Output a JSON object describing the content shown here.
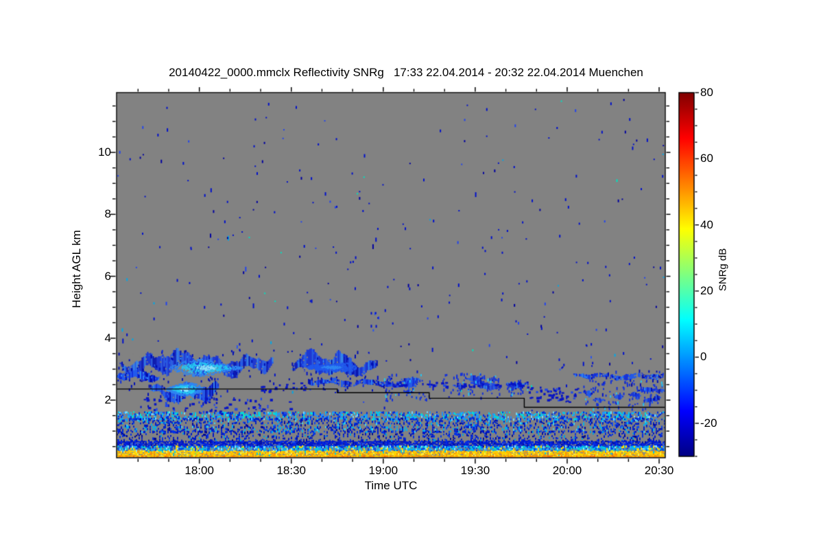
{
  "chart_data": {
    "type": "heatmap",
    "title": "20140422_0000.mmclx Reflectivity SNRg   17:33 22.04.2014 - 20:32 22.04.2014 Muenchen",
    "xlabel": "Time UTC",
    "ylabel": "Height AGL km",
    "x_axis": {
      "start": "17:33",
      "end": "20:32",
      "ticks": [
        "18:00",
        "18:30",
        "19:00",
        "19:30",
        "20:00",
        "20:30"
      ],
      "minor_step_minutes": 10
    },
    "y_axis": {
      "min_km": 0.14,
      "max_km": 11.93,
      "ticks": [
        2,
        4,
        6,
        8,
        10
      ],
      "minor_step_km": 0.5
    },
    "colorbar": {
      "label": "SNRg dB",
      "ticks": [
        80,
        60,
        40,
        20,
        0,
        -20
      ],
      "minor_step": 5,
      "range": [
        -30,
        80
      ],
      "colormap": "jet",
      "jet_stops": [
        [
          "#000083",
          0
        ],
        [
          "#0000ff",
          0.125
        ],
        [
          "#00ffff",
          0.375
        ],
        [
          "#ffff00",
          0.625
        ],
        [
          "#ff0000",
          0.875
        ],
        [
          "#800000",
          1
        ]
      ]
    },
    "no_echo_color": "#828282",
    "palette": {
      "cloud_dark": "#000fb4",
      "cloud_base": "#1330dc",
      "cloud_mid": "#2159ec",
      "cloud_light": "#2e86f2",
      "cloud_cyan": "#27c6f2",
      "cloud_pale": "#8ce4fa",
      "hole": "#828282"
    },
    "boundary_line": {
      "color": "#000000",
      "points": [
        [
          "17:33",
          2.36
        ],
        [
          "18:45",
          2.36
        ],
        [
          "18:45",
          2.24
        ],
        [
          "19:15",
          2.24
        ],
        [
          "19:15",
          2.06
        ],
        [
          "19:46",
          2.06
        ],
        [
          "19:46",
          1.77
        ],
        [
          "20:32",
          1.77
        ]
      ]
    },
    "clouds": [
      {
        "name": "main-cloud-layer",
        "t0": "17:34",
        "t1": "18:24",
        "h0": 2.78,
        "h1": 3.55,
        "style": "solid",
        "core": {
          "t0": "17:50",
          "t1": "18:14",
          "h0": 2.82,
          "h1": 3.3,
          "bright": true
        }
      },
      {
        "name": "left-lower-lobe",
        "t0": "17:33",
        "t1": "17:47",
        "h0": 2.6,
        "h1": 3.0,
        "style": "solid"
      },
      {
        "name": "lower-cloud-blob",
        "t0": "17:44",
        "t1": "18:06",
        "h0": 1.95,
        "h1": 2.65,
        "style": "solid",
        "core": {
          "t0": "17:49",
          "t1": "18:01",
          "h0": 2.18,
          "h1": 2.55,
          "bright": true
        }
      },
      {
        "name": "cloud-b",
        "t0": "18:30",
        "t1": "18:58",
        "h0": 2.75,
        "h1": 3.52,
        "style": "solid",
        "core": {
          "t0": "18:35",
          "t1": "18:51",
          "h0": 2.85,
          "h1": 3.3,
          "bright": false
        }
      },
      {
        "name": "thin-layer-a",
        "t0": "18:35",
        "t1": "19:02",
        "h0": 2.45,
        "h1": 2.72,
        "style": "thin"
      },
      {
        "name": "patch-a",
        "t0": "19:00",
        "t1": "19:15",
        "h0": 2.15,
        "h1": 2.8,
        "style": "patchy"
      },
      {
        "name": "patch-b",
        "t0": "19:19",
        "t1": "19:38",
        "h0": 2.3,
        "h1": 2.82,
        "style": "patchy"
      },
      {
        "name": "patch-c",
        "t0": "19:40",
        "t1": "19:47",
        "h0": 2.3,
        "h1": 2.6,
        "style": "patchy"
      },
      {
        "name": "thin-layer-b",
        "t0": "20:02",
        "t1": "20:32",
        "h0": 2.66,
        "h1": 2.9,
        "style": "thin"
      },
      {
        "name": "wavy-layer",
        "t0": "20:05",
        "t1": "20:32",
        "h0": 1.88,
        "h1": 2.6,
        "style": "patchy"
      }
    ],
    "scatters": [
      {
        "t0": "17:40",
        "t1": "18:30",
        "h0": 1.55,
        "h1": 2.1,
        "n": 70
      },
      {
        "t0": "18:57",
        "t1": "19:47",
        "h0": 2.45,
        "h1": 2.62,
        "n": 60
      },
      {
        "t0": "19:46",
        "t1": "20:06",
        "h0": 1.95,
        "h1": 2.45,
        "n": 55
      },
      {
        "t0": "18:20",
        "t1": "18:35",
        "h0": 2.3,
        "h1": 2.6,
        "n": 25
      }
    ],
    "streaks": [
      {
        "t": "18:12",
        "h0": 3.55,
        "h1": 4.05,
        "n": 5
      },
      {
        "t": "18:57",
        "h0": 4.25,
        "h1": 5.05,
        "n": 7
      },
      {
        "t": "19:58",
        "h0": 2.95,
        "h1": 3.45,
        "n": 5
      },
      {
        "t": "20:07",
        "h0": 3.1,
        "h1": 3.95,
        "n": 6
      }
    ],
    "noise_speckles": {
      "h0": 1.68,
      "h1": 11.9,
      "count": 300,
      "colors": [
        [
          "#0010cc",
          0.6
        ],
        [
          "#0000a0",
          0.2
        ],
        [
          "#2244ee",
          0.12
        ],
        [
          "#00a8e8",
          0.05
        ],
        [
          "#00e0c0",
          0.03
        ]
      ]
    },
    "pbl_bands": [
      {
        "h0": 1.42,
        "h1": 1.62,
        "density": 0.55,
        "colors": [
          [
            "#00c8f0",
            0.3
          ],
          [
            "#2090ff",
            0.25
          ],
          [
            "#0030dd",
            0.3
          ],
          [
            "#00e8d0",
            0.07
          ],
          [
            "#70d8ff",
            0.08
          ]
        ]
      },
      {
        "h0": 1.0,
        "h1": 1.42,
        "density": 0.42,
        "colors": [
          [
            "#0020cc",
            0.45
          ],
          [
            "#1048e8",
            0.2
          ],
          [
            "#00b0f0",
            0.18
          ],
          [
            "#0008a0",
            0.12
          ],
          [
            "#40d0f0",
            0.05
          ]
        ]
      },
      {
        "h0": 0.68,
        "h1": 1.0,
        "density": 0.3,
        "colors": [
          [
            "#0018c8",
            0.5
          ],
          [
            "#0030e8",
            0.25
          ],
          [
            "#00a0e0",
            0.1
          ],
          [
            "#000890",
            0.15
          ]
        ]
      },
      {
        "h0": 0.52,
        "h1": 0.68,
        "density": 0.94,
        "colors": [
          [
            "#0018d0",
            0.55
          ],
          [
            "#0028e8",
            0.25
          ],
          [
            "#0010a8",
            0.15
          ],
          [
            "#2050f0",
            0.05
          ]
        ]
      },
      {
        "h0": 0.36,
        "h1": 0.52,
        "density": 0.85,
        "colors": [
          [
            "#00b4f4",
            0.3
          ],
          [
            "#2fa0ff",
            0.15
          ],
          [
            "#0048e8",
            0.25
          ],
          [
            "#00e0d0",
            0.1
          ],
          [
            "#ffe000",
            0.1
          ],
          [
            "#80e8ff",
            0.1
          ]
        ]
      },
      {
        "h0": 0.2,
        "h1": 0.36,
        "density": 0.97,
        "colors": [
          [
            "#ffd400",
            0.38
          ],
          [
            "#ffb300",
            0.22
          ],
          [
            "#ffef40",
            0.15
          ],
          [
            "#ff9400",
            0.12
          ],
          [
            "#ffc800",
            0.08
          ],
          [
            "#00d0e0",
            0.03
          ],
          [
            "#a0e830",
            0.02
          ]
        ]
      },
      {
        "h0": 0.14,
        "h1": 0.2,
        "density": 1.0,
        "colors": [
          [
            "#ffa200",
            0.4
          ],
          [
            "#ff8800",
            0.25
          ],
          [
            "#ffc400",
            0.2
          ],
          [
            "#ff6a00",
            0.1
          ],
          [
            "#ffe000",
            0.05
          ]
        ]
      }
    ]
  }
}
